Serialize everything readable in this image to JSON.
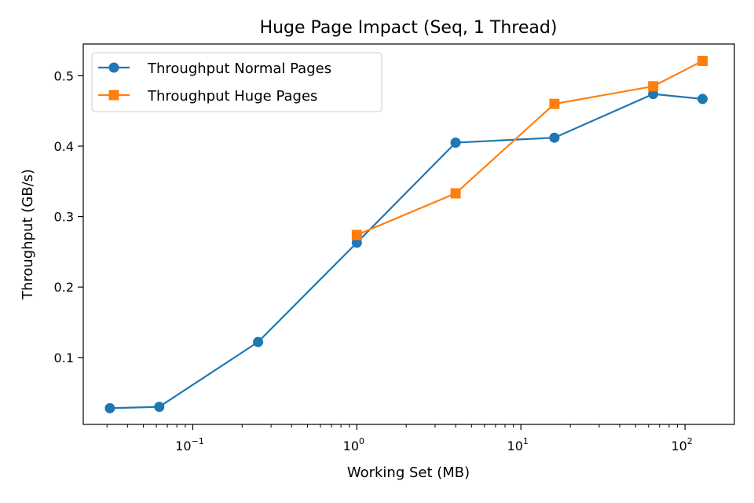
{
  "chart_data": {
    "type": "line",
    "title": "Huge Page Impact (Seq, 1 Thread)",
    "xlabel": "Working Set (MB)",
    "ylabel": "Throughput (GB/s)",
    "xscale": "log",
    "xlim": [
      0.0215,
      200
    ],
    "ylim": [
      0.005,
      0.545
    ],
    "x_ticks": [
      {
        "value": 0.1,
        "base": "10",
        "exp": "−1"
      },
      {
        "value": 1,
        "base": "10",
        "exp": "0"
      },
      {
        "value": 10,
        "base": "10",
        "exp": "1"
      },
      {
        "value": 100,
        "base": "10",
        "exp": "2"
      }
    ],
    "y_ticks": [
      {
        "value": 0.1,
        "label": "0.1"
      },
      {
        "value": 0.2,
        "label": "0.2"
      },
      {
        "value": 0.3,
        "label": "0.3"
      },
      {
        "value": 0.4,
        "label": "0.4"
      },
      {
        "value": 0.5,
        "label": "0.5"
      }
    ],
    "grid": false,
    "legend_position": "upper-left",
    "series": [
      {
        "name": "Throughput Normal Pages",
        "color": "#1f77b4",
        "marker": "circle",
        "x": [
          0.03125,
          0.0625,
          0.25,
          1,
          4,
          16,
          64,
          128
        ],
        "y": [
          0.028,
          0.03,
          0.122,
          0.263,
          0.405,
          0.412,
          0.474,
          0.467
        ]
      },
      {
        "name": "Throughput Huge Pages",
        "color": "#ff7f0e",
        "marker": "square",
        "x": [
          1,
          4,
          16,
          64,
          128
        ],
        "y": [
          0.274,
          0.333,
          0.46,
          0.485,
          0.521
        ]
      }
    ]
  }
}
